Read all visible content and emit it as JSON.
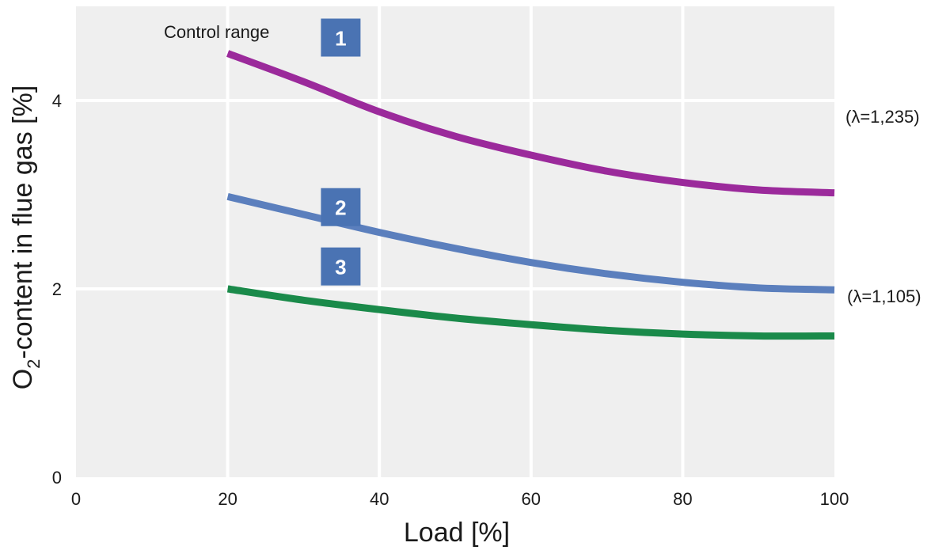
{
  "chart_data": {
    "type": "line",
    "xlabel": "Load [%]",
    "ylabel_main": "O",
    "ylabel_sub": "2",
    "ylabel_rest": "-content in flue gas [%]",
    "xlim": [
      0,
      100
    ],
    "ylim": [
      0,
      5
    ],
    "x_ticks": [
      "0",
      "20",
      "40",
      "60",
      "80",
      "100"
    ],
    "y_ticks": [
      "0",
      "2",
      "4"
    ],
    "grid": true,
    "background": "#efefef",
    "annotations": {
      "control_range": "Control range",
      "lambda_high": "(λ=1,235)",
      "lambda_low": "(λ=1,105)"
    },
    "series": [
      {
        "badge": "1",
        "color": "#9b2a9b",
        "x": [
          20,
          30,
          40,
          50,
          60,
          70,
          80,
          90,
          100
        ],
        "y": [
          4.5,
          4.2,
          3.88,
          3.62,
          3.42,
          3.25,
          3.13,
          3.05,
          3.02
        ]
      },
      {
        "badge": "2",
        "color": "#5b7fbd",
        "x": [
          20,
          30,
          40,
          50,
          60,
          70,
          80,
          90,
          100
        ],
        "y": [
          2.98,
          2.79,
          2.6,
          2.43,
          2.28,
          2.16,
          2.07,
          2.01,
          1.99
        ]
      },
      {
        "badge": "3",
        "color": "#1a8a4a",
        "x": [
          20,
          30,
          40,
          50,
          60,
          70,
          80,
          90,
          100
        ],
        "y": [
          2.0,
          1.88,
          1.78,
          1.69,
          1.62,
          1.56,
          1.52,
          1.5,
          1.5
        ]
      }
    ],
    "badge_color": "#4a73b3"
  }
}
